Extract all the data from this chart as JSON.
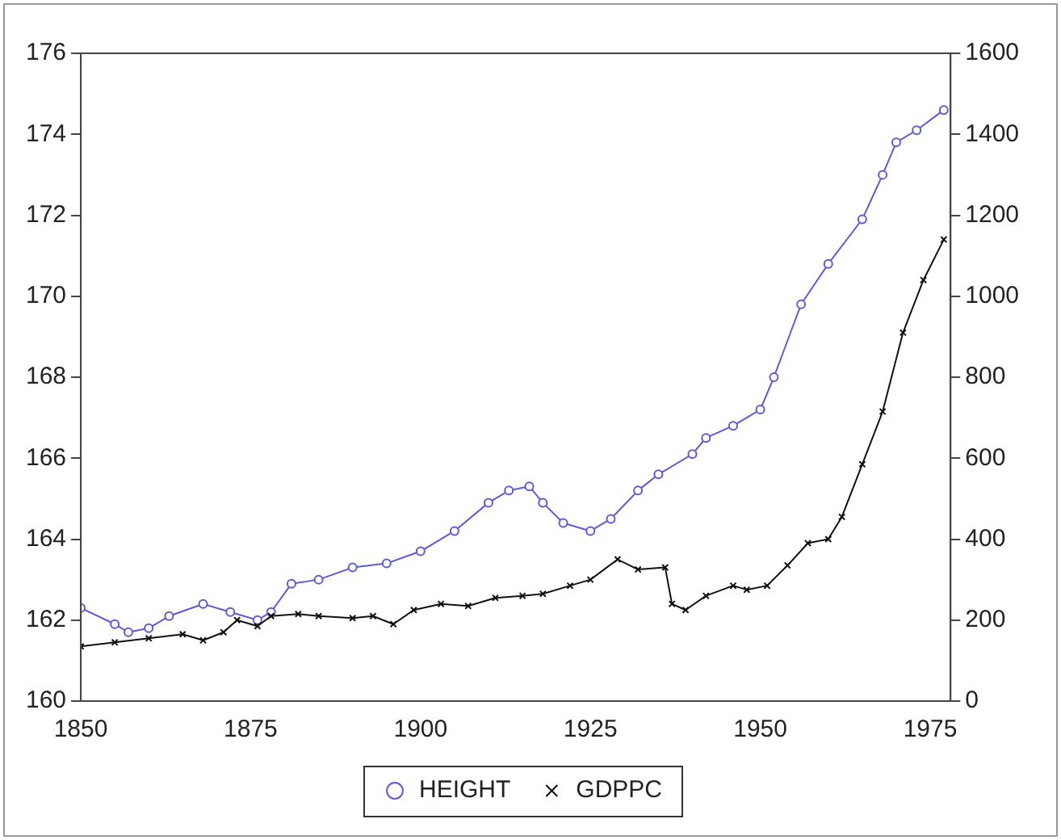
{
  "chart_data": {
    "type": "line",
    "series": [
      {
        "name": "HEIGHT",
        "color": "#5b5bd6",
        "marker": "circle",
        "x": [
          1850,
          1855,
          1857,
          1860,
          1863,
          1868,
          1872,
          1876,
          1878,
          1881,
          1885,
          1890,
          1895,
          1900,
          1905,
          1910,
          1913,
          1916,
          1918,
          1921,
          1925,
          1928,
          1932,
          1935,
          1940,
          1942,
          1946,
          1950,
          1952,
          1956,
          1960,
          1965,
          1968,
          1970,
          1973,
          1977
        ],
        "values": [
          162.3,
          161.9,
          161.7,
          161.8,
          162.1,
          162.4,
          162.2,
          162.0,
          162.2,
          162.9,
          163.0,
          163.3,
          163.4,
          163.7,
          164.2,
          164.9,
          165.2,
          165.3,
          164.9,
          164.4,
          164.2,
          164.5,
          165.2,
          165.6,
          166.1,
          166.5,
          166.8,
          167.2,
          168.0,
          169.8,
          170.8,
          171.9,
          173.0,
          173.8,
          174.1,
          174.6
        ]
      },
      {
        "name": "GDPPC",
        "color": "#111111",
        "marker": "cross",
        "axis": "y2",
        "x": [
          1850,
          1855,
          1860,
          1865,
          1868,
          1871,
          1873,
          1876,
          1878,
          1882,
          1885,
          1890,
          1893,
          1896,
          1899,
          1903,
          1907,
          1911,
          1915,
          1918,
          1922,
          1925,
          1929,
          1932,
          1936,
          1937,
          1939,
          1942,
          1946,
          1948,
          1951,
          1954,
          1957,
          1960,
          1962,
          1965,
          1968,
          1971,
          1974,
          1977
        ],
        "values": [
          135,
          145,
          155,
          165,
          150,
          170,
          200,
          185,
          210,
          215,
          210,
          205,
          210,
          190,
          225,
          240,
          235,
          255,
          260,
          265,
          285,
          300,
          350,
          325,
          330,
          240,
          225,
          260,
          285,
          275,
          285,
          335,
          390,
          400,
          455,
          585,
          715,
          910,
          1040,
          1140
        ]
      }
    ],
    "xlim": [
      1850,
      1978
    ],
    "xticks": [
      1850,
      1875,
      1900,
      1925,
      1950,
      1975
    ],
    "ylim": [
      160,
      176
    ],
    "yticks": [
      160,
      162,
      164,
      166,
      168,
      170,
      172,
      174,
      176
    ],
    "y2lim": [
      0,
      1600
    ],
    "y2ticks": [
      0,
      200,
      400,
      600,
      800,
      1000,
      1200,
      1400,
      1600
    ],
    "grid": false,
    "legend": "bottom"
  }
}
